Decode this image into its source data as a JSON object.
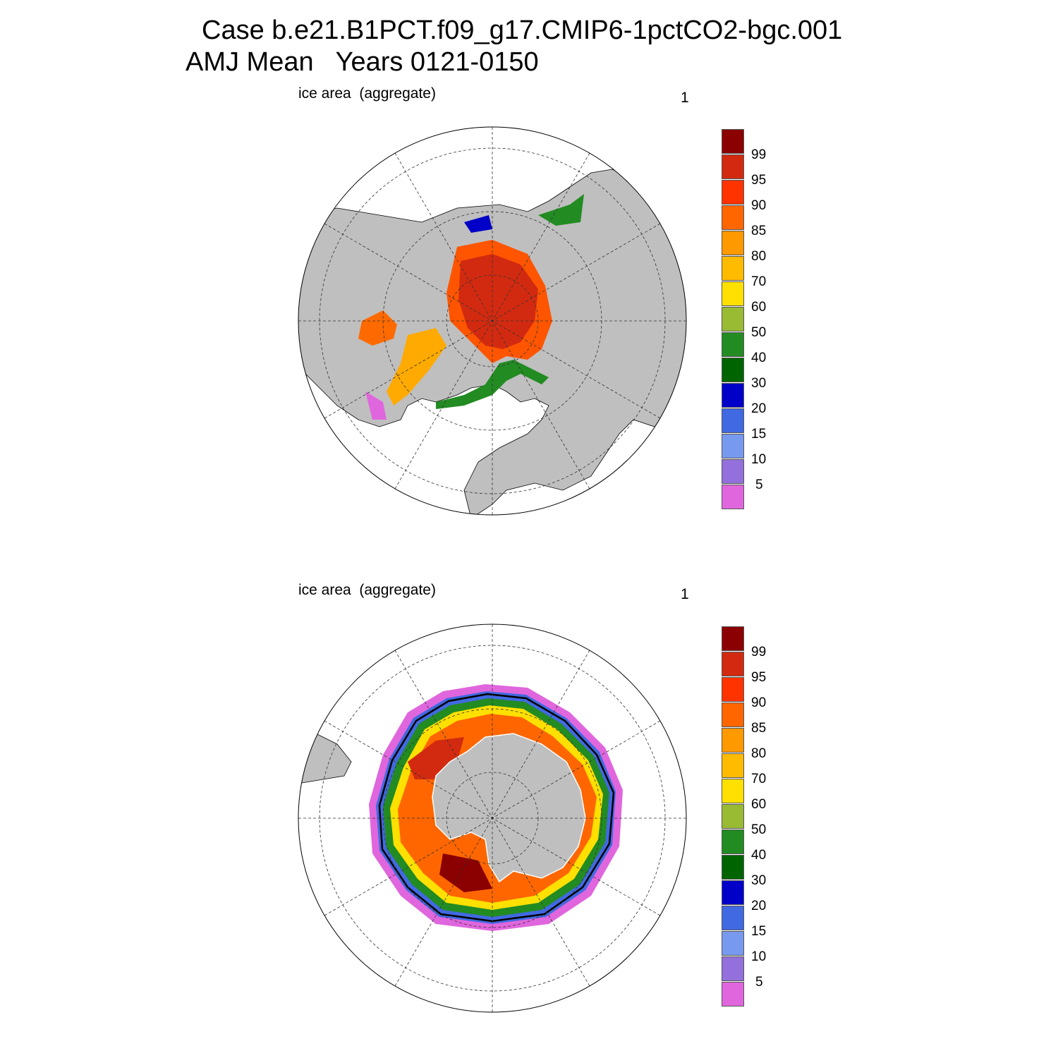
{
  "header": {
    "line1": "Case b.e21.B1PCT.f09_g17.CMIP6-1pctCO2-bgc.001",
    "line2": "AMJ Mean   Years 0121-0150"
  },
  "panels": [
    {
      "id": "north",
      "label": "ice area  (aggregate)",
      "number": "1"
    },
    {
      "id": "south",
      "label": "ice area  (aggregate)",
      "number": "1"
    }
  ],
  "colorbar": {
    "labels": [
      "99",
      "95",
      "90",
      "85",
      "80",
      "70",
      "60",
      "50",
      "40",
      "30",
      "20",
      "15",
      "10",
      "5"
    ],
    "colors": [
      "#8b0000",
      "#d22a10",
      "#ff3300",
      "#ff6600",
      "#ff9900",
      "#ffbb00",
      "#ffe000",
      "#99bb33",
      "#228b22",
      "#006400",
      "#0000c8",
      "#4169e1",
      "#7799ee",
      "#9370db",
      "#e066dd"
    ]
  },
  "map_colors": {
    "land": "#bfbfbf",
    "ocean": "#ffffff",
    "ice_edge": "#000000"
  }
}
